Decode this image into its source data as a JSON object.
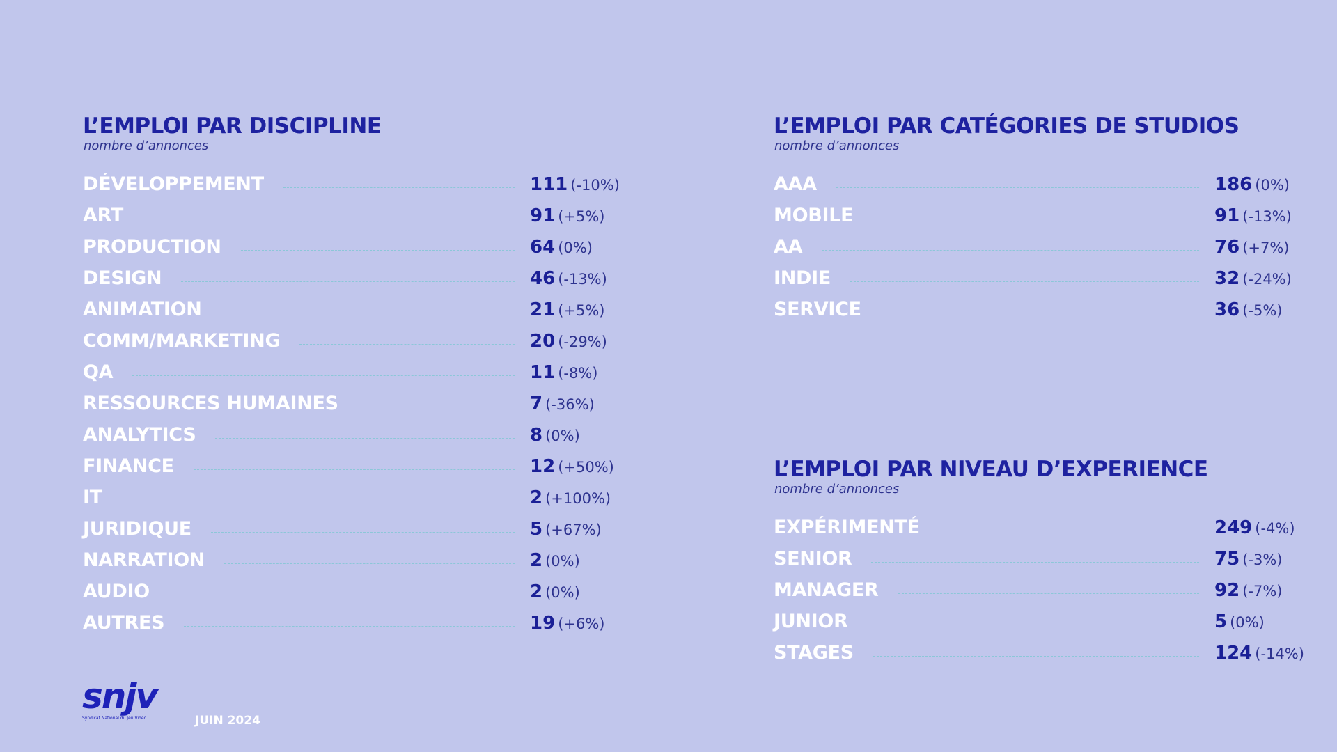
{
  "discipline": {
    "title": "L’EMPLOI PAR DISCIPLINE",
    "subtitle": "nombre d’annonces",
    "rows": [
      {
        "label": "DÉVELOPPEMENT",
        "value": "111",
        "change": "(-10%)"
      },
      {
        "label": "ART",
        "value": "91",
        "change": "(+5%)"
      },
      {
        "label": "PRODUCTION",
        "value": "64",
        "change": "(0%)"
      },
      {
        "label": "DESIGN",
        "value": "46",
        "change": "(-13%)"
      },
      {
        "label": "ANIMATION",
        "value": "21",
        "change": "(+5%)"
      },
      {
        "label": "COMM/MARKETING",
        "value": "20",
        "change": "(-29%)"
      },
      {
        "label": "QA",
        "value": "11",
        "change": "(-8%)"
      },
      {
        "label": "RESSOURCES HUMAINES",
        "value": "7",
        "change": "(-36%)"
      },
      {
        "label": "ANALYTICS",
        "value": "8",
        "change": "(0%)"
      },
      {
        "label": "FINANCE",
        "value": "12",
        "change": "(+50%)"
      },
      {
        "label": "IT",
        "value": "2",
        "change": "(+100%)"
      },
      {
        "label": "JURIDIQUE",
        "value": "5",
        "change": "(+67%)"
      },
      {
        "label": "NARRATION",
        "value": "2",
        "change": "(0%)"
      },
      {
        "label": "AUDIO",
        "value": "2",
        "change": "(0%)"
      },
      {
        "label": "AUTRES",
        "value": "19",
        "change": "(+6%)"
      }
    ]
  },
  "studios": {
    "title": "L’EMPLOI PAR CATÉGORIES DE STUDIOS",
    "subtitle": "nombre d’annonces",
    "rows": [
      {
        "label": "AAA",
        "value": "186",
        "change": "(0%)"
      },
      {
        "label": "MOBILE",
        "value": "91",
        "change": "(-13%)"
      },
      {
        "label": "AA",
        "value": "76",
        "change": "(+7%)"
      },
      {
        "label": "INDIE",
        "value": "32",
        "change": "(-24%)"
      },
      {
        "label": "SERVICE",
        "value": "36",
        "change": "(-5%)"
      }
    ]
  },
  "experience": {
    "title": "L’EMPLOI PAR NIVEAU D’EXPERIENCE",
    "subtitle": "nombre d’annonces",
    "rows": [
      {
        "label": "EXPÉRIMENTÉ",
        "value": "249",
        "change": "(-4%)"
      },
      {
        "label": "SENIOR",
        "value": "75",
        "change": "(-3%)"
      },
      {
        "label": "MANAGER",
        "value": "92",
        "change": "(-7%)"
      },
      {
        "label": "JUNIOR",
        "value": "5",
        "change": "(0%)"
      },
      {
        "label": "STAGES",
        "value": "124",
        "change": "(-14%)"
      }
    ]
  },
  "footer": {
    "logo_text": "snjv",
    "logo_subtitle": "Syndicat National du Jeu Vidéo",
    "date": "JUIN 2024"
  }
}
